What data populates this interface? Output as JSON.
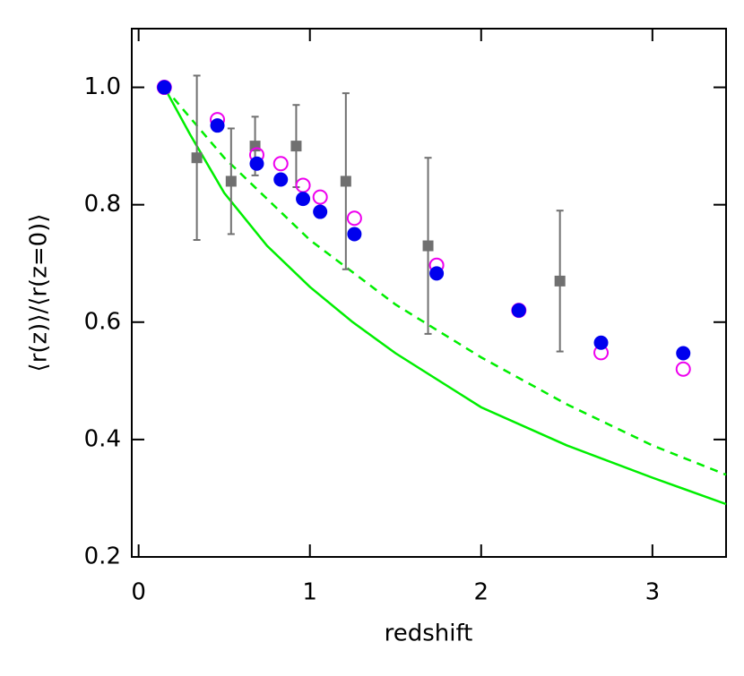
{
  "chart_data": {
    "type": "scatter",
    "xlabel": "redshift",
    "ylabel": "⟨r(z)⟩/⟨r(z=0)⟩",
    "xlim": [
      -0.04,
      3.43
    ],
    "xticks": [
      0,
      1,
      2,
      3
    ],
    "ylim": [
      0.2,
      1.1
    ],
    "yticks": [
      {
        "value": 0.2,
        "label": "0.2"
      },
      {
        "value": 0.4,
        "label": "0.4"
      },
      {
        "value": 0.6,
        "label": "0.6"
      },
      {
        "value": 0.8,
        "label": "0.8"
      },
      {
        "value": 1.0,
        "label": "1.0"
      }
    ],
    "series": [
      {
        "kind": "line",
        "dash": false,
        "color": "#00ee00",
        "x": [
          0.15,
          0.3,
          0.5,
          0.75,
          1.0,
          1.25,
          1.5,
          2.0,
          2.5,
          3.0,
          3.43
        ],
        "values": [
          1.0,
          0.92,
          0.82,
          0.73,
          0.66,
          0.6,
          0.547,
          0.455,
          0.39,
          0.335,
          0.29
        ]
      },
      {
        "kind": "line",
        "dash": true,
        "color": "#00ee00",
        "x": [
          0.15,
          0.5,
          1.0,
          1.5,
          2.0,
          2.5,
          3.0,
          3.43
        ],
        "values": [
          1.0,
          0.88,
          0.74,
          0.63,
          0.54,
          0.46,
          0.39,
          0.34
        ]
      },
      {
        "kind": "errorbar",
        "color": "#707070",
        "x": [
          0.34,
          0.54,
          0.68,
          0.92,
          1.21,
          1.69,
          2.46
        ],
        "values": [
          0.88,
          0.84,
          0.9,
          0.9,
          0.84,
          0.73,
          0.67
        ],
        "errors": [
          0.14,
          0.09,
          0.05,
          0.07,
          0.15,
          0.15,
          0.12
        ]
      },
      {
        "kind": "open",
        "color": "#ee00ee",
        "x": [
          0.15,
          0.46,
          0.69,
          0.83,
          0.96,
          1.06,
          1.26,
          1.74,
          2.22,
          2.7,
          3.18
        ],
        "values": [
          1.0,
          0.945,
          0.885,
          0.87,
          0.833,
          0.813,
          0.777,
          0.697,
          0.62,
          0.548,
          0.52
        ]
      },
      {
        "kind": "filled",
        "color": "#0000ee",
        "x": [
          0.15,
          0.46,
          0.69,
          0.83,
          0.96,
          1.06,
          1.26,
          1.74,
          2.22,
          2.7,
          3.18
        ],
        "values": [
          1.0,
          0.935,
          0.87,
          0.843,
          0.81,
          0.788,
          0.75,
          0.683,
          0.62,
          0.565,
          0.547
        ]
      }
    ]
  }
}
